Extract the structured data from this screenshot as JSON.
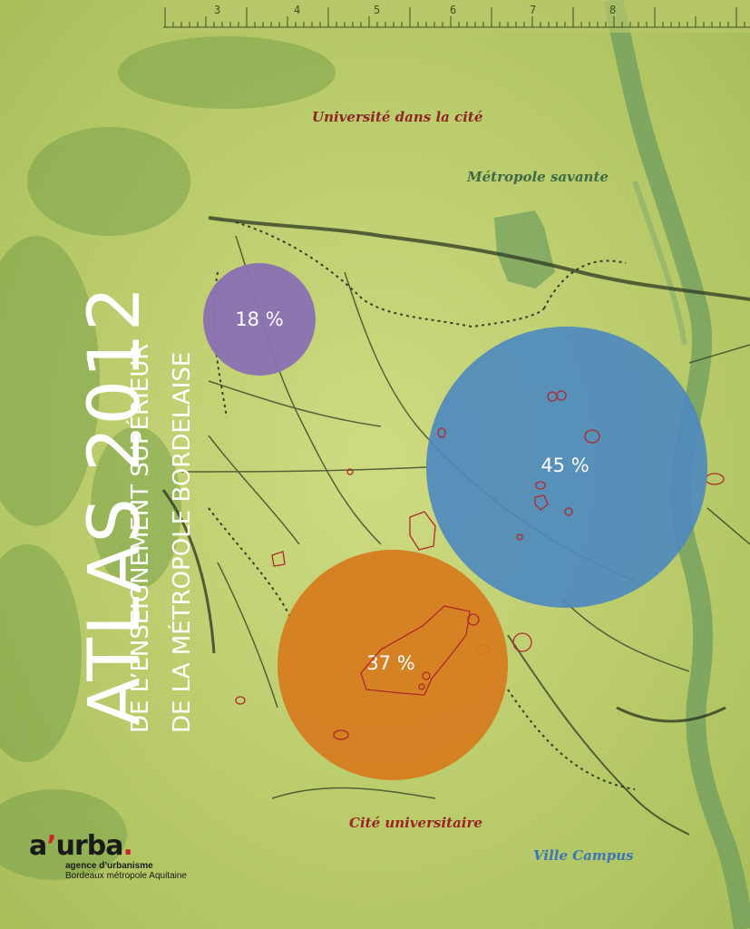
{
  "cover": {
    "title": "ATLAS 2012",
    "subtitle_line1": "DE L’ENSEIGNEMENT SUPÉRIEUR",
    "subtitle_line2": "DE LA MÉTROPOLE BORDELAISE"
  },
  "ruler": {
    "numbers": [
      "3",
      "4",
      "5",
      "6",
      "7",
      "8"
    ]
  },
  "themes": {
    "universite": "Université dans la cité",
    "metropole": "Métropole savante",
    "cite": "Cité universitaire",
    "ville": "Ville Campus"
  },
  "bubbles": [
    {
      "label": "18 %",
      "value": 18,
      "color": "#8a70b2"
    },
    {
      "label": "45 %",
      "value": 45,
      "color": "#4e8abe"
    },
    {
      "label": "37 %",
      "value": 37,
      "color": "#d67c20"
    }
  ],
  "logo": {
    "mark_prefix": "a",
    "mark_apostrophe": "’",
    "mark_suffix": "urba",
    "mark_dot": ".",
    "line1": "agence d’urbanisme",
    "line2": "Bordeaux métropole Aquitaine"
  },
  "colors": {
    "background": "#c9d67a",
    "river": "#6f9c5e",
    "map_lines": "#2f3a22",
    "outline_red": "#b0282a"
  }
}
